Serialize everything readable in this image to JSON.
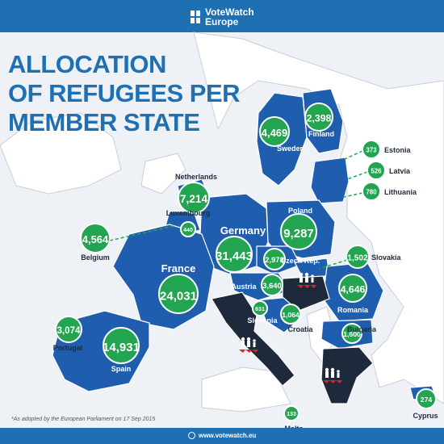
{
  "brand": {
    "line1": "VoteWatch",
    "line2": "Europe"
  },
  "title_lines": [
    "ALLOCATION",
    "OF REFUGEES PER",
    "MEMBER STATE"
  ],
  "footnote": "*As adopted by the European Parliament on 17 Sep 2015",
  "website": "www.votewatch.eu",
  "colors": {
    "member": "#1f5eae",
    "frontline": "#1e2a3c",
    "other": "#ffffff",
    "sea": "#eef1f5",
    "bubble": "#22a450",
    "accent": "#1f6fb3"
  },
  "map_legend_icon": "refugee-family-arrow-icon",
  "countries": [
    {
      "name": "Sweden",
      "value": "4,469",
      "allocation": 4469
    },
    {
      "name": "Finland",
      "value": "2,398",
      "allocation": 2398
    },
    {
      "name": "Estonia",
      "value": "373",
      "allocation": 373
    },
    {
      "name": "Latvia",
      "value": "526",
      "allocation": 526
    },
    {
      "name": "Lithuania",
      "value": "780",
      "allocation": 780
    },
    {
      "name": "Netherlands",
      "value": "7,214",
      "allocation": 7214
    },
    {
      "name": "Luxembourg",
      "value": "440",
      "allocation": 440
    },
    {
      "name": "Belgium",
      "value": "4,564",
      "allocation": 4564
    },
    {
      "name": "Germany",
      "value": "31,443",
      "allocation": 31443
    },
    {
      "name": "Poland",
      "value": "9,287",
      "allocation": 9287
    },
    {
      "name": "France",
      "value": "24,031",
      "allocation": 24031
    },
    {
      "name": "Czech Rep.",
      "value": "2,978",
      "allocation": 2978
    },
    {
      "name": "Slovakia",
      "value": "1,502",
      "allocation": 1502
    },
    {
      "name": "Austria",
      "value": "3,640",
      "allocation": 3640
    },
    {
      "name": "Romania",
      "value": "4,646",
      "allocation": 4646
    },
    {
      "name": "Slovenia",
      "value": "631",
      "allocation": 631
    },
    {
      "name": "Croatia",
      "value": "1,064",
      "allocation": 1064
    },
    {
      "name": "Bulgaria",
      "value": "1,600",
      "allocation": 1600
    },
    {
      "name": "Portugal",
      "value": "3,074",
      "allocation": 3074
    },
    {
      "name": "Spain",
      "value": "14,931",
      "allocation": 14931
    },
    {
      "name": "Malta",
      "value": "133",
      "allocation": 133
    },
    {
      "name": "Cyprus",
      "value": "274",
      "allocation": 274
    }
  ]
}
